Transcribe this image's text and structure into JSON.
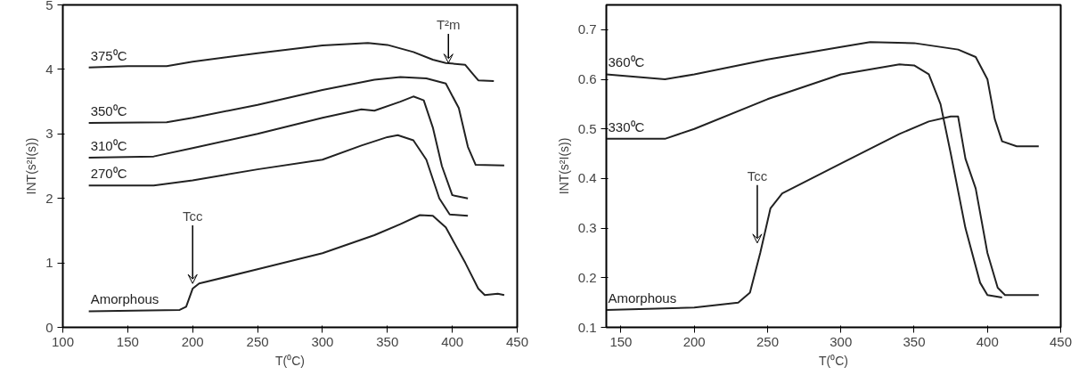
{
  "chart_data": [
    {
      "type": "line",
      "ylabel": "INT(s²I(s))",
      "xlabel": "T(⁰C)",
      "xlim": [
        100,
        450
      ],
      "ylim": [
        0,
        5
      ],
      "xticks": [
        100,
        150,
        200,
        250,
        300,
        350,
        400,
        450
      ],
      "yticks": [
        0,
        1,
        2,
        3,
        4,
        5
      ],
      "grid": false,
      "marker": "none",
      "line_style": "solid",
      "series": [
        {
          "name": "375⁰C",
          "color": "#222222",
          "x": [
            120,
            150,
            180,
            200,
            250,
            300,
            335,
            350,
            370,
            385,
            395,
            410,
            415,
            420,
            432
          ],
          "values": [
            4.03,
            4.05,
            4.05,
            4.12,
            4.25,
            4.37,
            4.41,
            4.38,
            4.27,
            4.15,
            4.1,
            4.07,
            3.95,
            3.83,
            3.82
          ]
        },
        {
          "name": "350⁰C",
          "color": "#222222",
          "x": [
            120,
            180,
            200,
            250,
            300,
            340,
            360,
            380,
            395,
            405,
            412,
            418,
            440
          ],
          "values": [
            3.17,
            3.18,
            3.25,
            3.45,
            3.68,
            3.84,
            3.88,
            3.86,
            3.78,
            3.4,
            2.8,
            2.52,
            2.51
          ]
        },
        {
          "name": "310⁰C",
          "color": "#222222",
          "x": [
            120,
            170,
            200,
            250,
            300,
            330,
            340,
            360,
            370,
            378,
            385,
            392,
            400,
            412
          ],
          "values": [
            2.63,
            2.65,
            2.78,
            3.0,
            3.25,
            3.38,
            3.36,
            3.5,
            3.58,
            3.52,
            3.1,
            2.5,
            2.05,
            2.0
          ]
        },
        {
          "name": "270⁰C",
          "color": "#222222",
          "x": [
            120,
            170,
            200,
            250,
            300,
            330,
            350,
            358,
            370,
            380,
            390,
            398,
            412
          ],
          "values": [
            2.2,
            2.2,
            2.28,
            2.45,
            2.6,
            2.82,
            2.95,
            2.98,
            2.9,
            2.6,
            2.0,
            1.75,
            1.73
          ]
        },
        {
          "name": "Amorphous",
          "color": "#222222",
          "x": [
            120,
            190,
            195,
            200,
            205,
            250,
            300,
            340,
            360,
            375,
            385,
            395,
            410,
            420,
            425,
            435,
            440
          ],
          "values": [
            0.25,
            0.27,
            0.32,
            0.6,
            0.68,
            0.9,
            1.15,
            1.43,
            1.6,
            1.74,
            1.73,
            1.55,
            1.0,
            0.6,
            0.5,
            0.52,
            0.5
          ]
        }
      ],
      "annotations": [
        {
          "text": "Tcc",
          "x": 200,
          "y": 0.68
        },
        {
          "text": "T²m",
          "x": 397,
          "y": 4.1
        }
      ]
    },
    {
      "type": "line",
      "ylabel": "INT(s²I(s))",
      "xlabel": "T(⁰C)",
      "xlim": [
        140,
        450
      ],
      "ylim": [
        0.1,
        0.75
      ],
      "xticks": [
        150,
        200,
        250,
        300,
        350,
        400,
        450
      ],
      "yticks": [
        0.1,
        0.2,
        0.3,
        0.4,
        0.5,
        0.6,
        0.7
      ],
      "grid": false,
      "marker": "none",
      "line_style": "solid",
      "series": [
        {
          "name": "360⁰C",
          "color": "#222222",
          "x": [
            140,
            160,
            180,
            200,
            250,
            300,
            320,
            350,
            380,
            392,
            400,
            405,
            410,
            420,
            435
          ],
          "values": [
            0.61,
            0.605,
            0.6,
            0.61,
            0.64,
            0.665,
            0.675,
            0.673,
            0.66,
            0.645,
            0.6,
            0.52,
            0.475,
            0.465,
            0.465
          ]
        },
        {
          "name": "330⁰C",
          "color": "#222222",
          "x": [
            140,
            180,
            200,
            250,
            300,
            340,
            350,
            360,
            368,
            375,
            385,
            395,
            400,
            410
          ],
          "values": [
            0.48,
            0.48,
            0.5,
            0.56,
            0.61,
            0.63,
            0.628,
            0.61,
            0.55,
            0.45,
            0.3,
            0.19,
            0.165,
            0.16
          ]
        },
        {
          "name": "Amorphous",
          "color": "#222222",
          "x": [
            140,
            200,
            230,
            238,
            245,
            252,
            260,
            300,
            340,
            360,
            375,
            380,
            385,
            392,
            400,
            407,
            412,
            435
          ],
          "values": [
            0.135,
            0.14,
            0.15,
            0.17,
            0.25,
            0.34,
            0.37,
            0.43,
            0.49,
            0.515,
            0.525,
            0.525,
            0.44,
            0.38,
            0.25,
            0.18,
            0.165,
            0.165
          ]
        }
      ],
      "annotations": [
        {
          "text": "Tcc",
          "x": 243,
          "y": 0.27
        }
      ]
    }
  ]
}
